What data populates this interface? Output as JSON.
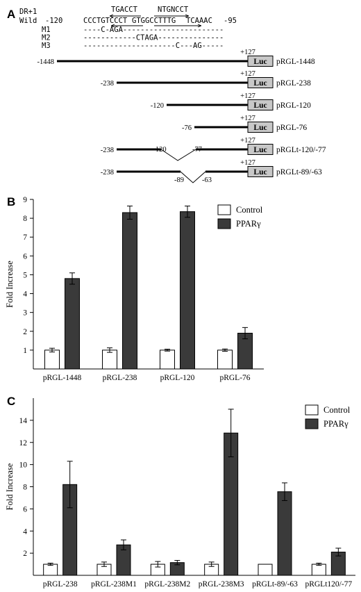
{
  "panel_a": {
    "letter": "A",
    "dr_label": "DR+1",
    "motif1": "TGACCT",
    "motif2": "NTGNCCT",
    "wild_label": "Wild",
    "wild_start": "-120",
    "wild_seq1": "CCCTGTCCCT",
    "wild_seq2": "GTGGCCTTTG",
    "wild_seq3": "TCAAAC",
    "wild_end": "-95",
    "mutants": [
      {
        "name": "M1",
        "seq": "----C-AGA-----------------------"
      },
      {
        "name": "M2",
        "seq": "------------CTAGA---------------"
      },
      {
        "name": "M3",
        "seq": "---------------------C---AG-----"
      }
    ],
    "luc_label": "Luc",
    "plus_label": "+127",
    "constructs": [
      {
        "name": "pRGL-1448",
        "left": "-1448"
      },
      {
        "name": "pRGL-238",
        "left": "-238"
      },
      {
        "name": "pRGL-120",
        "left": "-120"
      },
      {
        "name": "pRGL-76",
        "left": "-76"
      },
      {
        "name": "pRGLt-120/-77",
        "left": "-238",
        "gap_l": "-120",
        "gap_r": "-77"
      },
      {
        "name": "pRGLt-89/-63",
        "left": "-238",
        "gap_l": "-89",
        "gap_r": "-63"
      }
    ]
  },
  "chart_data": [
    {
      "panel": "B",
      "type": "bar",
      "ylabel": "Fold Increase",
      "ylim": [
        0,
        9
      ],
      "yticks": [
        1,
        2,
        3,
        4,
        5,
        6,
        7,
        8,
        9
      ],
      "categories": [
        "pRGL-1448",
        "pRGL-238",
        "pRGL-120",
        "pRGL-76"
      ],
      "series": [
        {
          "name": "Control",
          "color": "#ffffff",
          "values": [
            1.0,
            1.0,
            1.0,
            1.0
          ],
          "errors": [
            0.1,
            0.12,
            0.05,
            0.06
          ]
        },
        {
          "name": "PPARγ",
          "color": "#3a3a3a",
          "values": [
            4.8,
            8.3,
            8.35,
            1.9
          ],
          "errors": [
            0.3,
            0.35,
            0.3,
            0.3
          ]
        }
      ],
      "legend_position": "top-right"
    },
    {
      "panel": "C",
      "type": "bar",
      "ylabel": "Fold Increase",
      "ylim": [
        0,
        16
      ],
      "yticks": [
        2,
        4,
        6,
        8,
        10,
        12,
        14
      ],
      "categories": [
        "pRGL-238",
        "pRGL-238M1",
        "pRGL-238M2",
        "pRGL-238M3",
        "pRGLt-89/-63",
        "pRGLt120/-77"
      ],
      "series": [
        {
          "name": "Control",
          "color": "#ffffff",
          "values": [
            1.0,
            1.0,
            1.0,
            1.0,
            1.0,
            1.0
          ],
          "errors": [
            0.1,
            0.2,
            0.25,
            0.2,
            0.0,
            0.1
          ]
        },
        {
          "name": "PPARγ",
          "color": "#3a3a3a",
          "values": [
            8.2,
            2.75,
            1.15,
            12.85,
            7.55,
            2.1
          ],
          "errors": [
            2.1,
            0.45,
            0.2,
            2.15,
            0.8,
            0.35
          ]
        }
      ],
      "legend_position": "top-right"
    }
  ]
}
